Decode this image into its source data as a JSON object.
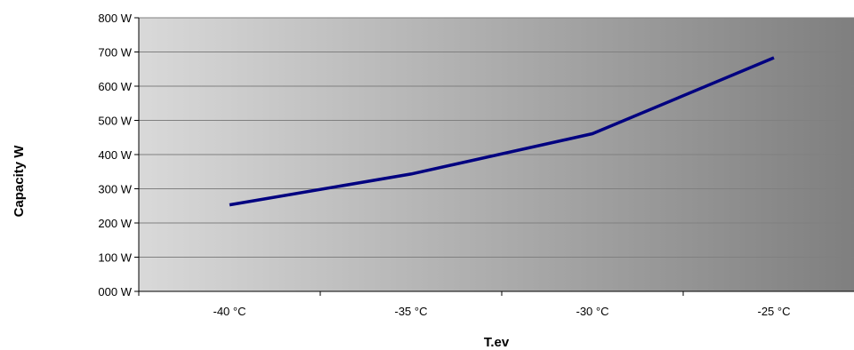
{
  "chart_data": {
    "type": "line",
    "title": "",
    "xlabel": "T.ev",
    "ylabel": "Capacity W",
    "categories": [
      "-40 °C",
      "-35 °C",
      "-30 °C",
      "-25 °C"
    ],
    "series": [
      {
        "values": [
          253,
          343,
          461,
          683
        ]
      }
    ],
    "y_ticks": [
      "000 W",
      "100 W",
      "200 W",
      "300 W",
      "400 W",
      "500 W",
      "600 W",
      "700 W",
      "800 W"
    ],
    "ylim": [
      0,
      800
    ],
    "grid": "horizontal",
    "colors": {
      "line": "#000080",
      "plot_gradient_start": "#d9d9d9",
      "plot_gradient_end": "#7f7f7f",
      "gridline": "#808080"
    }
  }
}
